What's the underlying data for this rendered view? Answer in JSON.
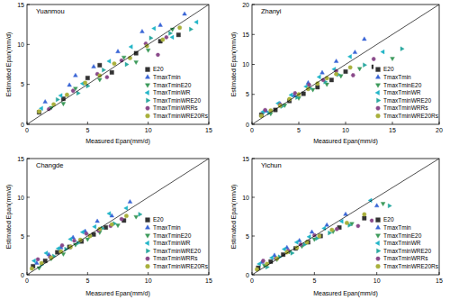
{
  "chart_data": [
    {
      "type": "scatter",
      "title": "Yuanmou",
      "x_label": "Measured Epan(mm/d)",
      "y_label": "Estimated Epan(mm/d)",
      "xlim": [
        0,
        15
      ],
      "ylim": [
        0,
        15
      ],
      "xticks": [
        0,
        5,
        10,
        15
      ],
      "yticks": [
        0,
        5,
        10,
        15
      ],
      "legend": "lower right",
      "series": [
        {
          "name": "E20",
          "color": "#333333",
          "marker": "square",
          "x": [
            1,
            3,
            5,
            7,
            9,
            11,
            12.5,
            6
          ],
          "values": [
            1.5,
            3.2,
            5.8,
            6.5,
            8.9,
            10.4,
            11.2,
            7.4
          ]
        },
        {
          "name": "TmaxTmin",
          "color": "#3a66d6",
          "marker": "triangle-up",
          "x": [
            1.5,
            3.5,
            5.5,
            7.5,
            9.5,
            11,
            13,
            4
          ],
          "values": [
            2.8,
            4.9,
            7.2,
            9.1,
            11.6,
            12.4,
            13.8,
            6.1
          ]
        },
        {
          "name": "TmaxTminE20",
          "color": "#3c9a5a",
          "marker": "triangle-down",
          "x": [
            2,
            4,
            6,
            8,
            10,
            12,
            3,
            9
          ],
          "values": [
            2.1,
            4.5,
            5.6,
            8.4,
            9.3,
            11.9,
            2.6,
            7.8
          ]
        },
        {
          "name": "TmaxTminWR",
          "color": "#22b5c8",
          "marker": "triangle-left",
          "x": [
            1.2,
            2.8,
            4.6,
            6.8,
            8.6,
            10.5,
            12,
            14
          ],
          "values": [
            2.0,
            3.6,
            5.1,
            7.9,
            9.7,
            12.0,
            10.9,
            12.8
          ]
        },
        {
          "name": "TmaxTminWRE20",
          "color": "#2aa8a0",
          "marker": "triangle-right",
          "x": [
            2.5,
            4.2,
            6.3,
            8.2,
            10.2,
            11.8,
            5,
            13.5
          ],
          "values": [
            3.1,
            3.9,
            6.8,
            7.5,
            10.8,
            11.4,
            4.8,
            11.9
          ]
        },
        {
          "name": "TmaxTminWRRs",
          "color": "#8a4a8a",
          "marker": "hexagon",
          "x": [
            1.8,
            3.8,
            5.8,
            7.8,
            9.8,
            11.5,
            6.6,
            10.8
          ],
          "values": [
            1.9,
            4.2,
            6.3,
            8.0,
            10.1,
            10.9,
            5.9,
            8.7
          ]
        },
        {
          "name": "TmaxTminWRE20Rs",
          "color": "#a9b03c",
          "marker": "circle",
          "x": [
            1,
            2.2,
            3.3,
            4.8,
            6,
            7.2,
            8.5,
            9.9,
            11.2,
            12.6
          ],
          "values": [
            1.6,
            2.5,
            3.7,
            5.2,
            6.1,
            7.6,
            8.3,
            9.8,
            10.6,
            12.1
          ]
        }
      ]
    },
    {
      "type": "scatter",
      "title": "Zhanyi",
      "x_label": "Measured Epan(mm/d)",
      "y_label": "Estimated Epan(mm/d)",
      "xlim": [
        0,
        20
      ],
      "ylim": [
        0,
        20
      ],
      "xticks": [
        0,
        5,
        10,
        15,
        20
      ],
      "yticks": [
        0,
        5,
        10,
        15,
        20
      ],
      "legend": "lower right",
      "series": [
        {
          "name": "E20",
          "color": "#333333",
          "marker": "square",
          "x": [
            1,
            2.5,
            4,
            5.5,
            7,
            8.5,
            10,
            13
          ],
          "values": [
            1.6,
            2.4,
            3.9,
            5.1,
            6.2,
            7.4,
            8.8,
            9.6
          ]
        },
        {
          "name": "TmaxTmin",
          "color": "#3a66d6",
          "marker": "triangle-up",
          "x": [
            1.5,
            3,
            4.5,
            6,
            7.5,
            9,
            11,
            12
          ],
          "values": [
            2.2,
            3.4,
            4.8,
            6.9,
            8.6,
            10.5,
            12.0,
            14.2
          ]
        },
        {
          "name": "TmaxTminE20",
          "color": "#3c9a5a",
          "marker": "triangle-down",
          "x": [
            2,
            3.5,
            5,
            6.5,
            8,
            9.5,
            11.5,
            15
          ],
          "values": [
            1.8,
            3.2,
            4.4,
            5.8,
            6.7,
            8.1,
            9.3,
            11.0
          ]
        },
        {
          "name": "TmaxTminWR",
          "color": "#22b5c8",
          "marker": "triangle-left",
          "x": [
            1.2,
            2.8,
            4.2,
            5.8,
            7.2,
            8.8,
            10.5,
            14
          ],
          "values": [
            2.1,
            3.5,
            4.9,
            6.3,
            7.9,
            9.2,
            11.3,
            12.1
          ]
        },
        {
          "name": "TmaxTminWRE20",
          "color": "#2aa8a0",
          "marker": "triangle-right",
          "x": [
            1.8,
            3.2,
            4.8,
            6.2,
            7.8,
            9.2,
            12,
            16
          ],
          "values": [
            1.9,
            3.0,
            4.5,
            6.0,
            7.1,
            8.3,
            9.9,
            12.6
          ]
        },
        {
          "name": "TmaxTminWRRs",
          "color": "#8a4a8a",
          "marker": "hexagon",
          "x": [
            1.4,
            3,
            4.6,
            6.1,
            7.6,
            9,
            10.8,
            13
          ],
          "values": [
            2.4,
            3.3,
            5.2,
            6.6,
            7.4,
            8.9,
            8.2,
            10.9
          ]
        },
        {
          "name": "TmaxTminWRE20Rs",
          "color": "#a9b03c",
          "marker": "circle",
          "x": [
            1,
            2,
            3,
            4,
            5,
            6,
            7,
            8,
            9,
            10.5
          ],
          "values": [
            1.4,
            2.3,
            3.1,
            4.2,
            5.0,
            5.9,
            6.8,
            7.7,
            8.4,
            9.5
          ]
        }
      ]
    },
    {
      "type": "scatter",
      "title": "Changde",
      "x_label": "Measured Epan(mm/d)",
      "y_label": "Estimated Epan(mm/d)",
      "xlim": [
        0,
        15
      ],
      "ylim": [
        0,
        15
      ],
      "xticks": [
        0,
        5,
        10,
        15
      ],
      "yticks": [
        0,
        5,
        10,
        15
      ],
      "legend": "lower right",
      "series": [
        {
          "name": "E20",
          "color": "#333333",
          "marker": "square",
          "x": [
            0.5,
            1.5,
            2.5,
            3.5,
            4.5,
            5.5,
            6.5,
            8
          ],
          "values": [
            1.1,
            1.8,
            2.9,
            3.6,
            4.3,
            5.2,
            6.1,
            7.0
          ]
        },
        {
          "name": "TmaxTmin",
          "color": "#3a66d6",
          "marker": "triangle-up",
          "x": [
            0.8,
            1.8,
            2.8,
            3.8,
            4.8,
            5.8,
            7,
            8.5
          ],
          "values": [
            1.5,
            2.6,
            3.5,
            4.8,
            5.6,
            6.9,
            7.6,
            9.4
          ]
        },
        {
          "name": "TmaxTminE20",
          "color": "#3c9a5a",
          "marker": "triangle-down",
          "x": [
            1,
            2,
            3,
            4,
            5,
            6,
            7.5,
            9
          ],
          "values": [
            0.9,
            2.1,
            2.7,
            3.9,
            4.6,
            5.5,
            6.4,
            7.5
          ]
        },
        {
          "name": "TmaxTminWR",
          "color": "#22b5c8",
          "marker": "triangle-left",
          "x": [
            0.6,
            1.6,
            2.6,
            3.6,
            4.6,
            5.6,
            6.8,
            8.2
          ],
          "values": [
            1.8,
            2.8,
            3.4,
            4.6,
            5.5,
            6.2,
            7.9,
            8.6
          ]
        },
        {
          "name": "TmaxTminWRE20",
          "color": "#2aa8a0",
          "marker": "triangle-right",
          "x": [
            1.2,
            2.2,
            3.2,
            4.2,
            5.2,
            6.2,
            7.2,
            9.3
          ],
          "values": [
            1.3,
            2.4,
            3.3,
            4.1,
            5.0,
            6.0,
            6.6,
            7.8
          ]
        },
        {
          "name": "TmaxTminWRRs",
          "color": "#8a4a8a",
          "marker": "hexagon",
          "x": [
            0.9,
            1.9,
            2.9,
            3.9,
            4.9,
            5.9,
            6.9,
            7.8
          ],
          "values": [
            2.0,
            2.3,
            3.8,
            4.4,
            5.3,
            5.7,
            6.3,
            7.2
          ]
        },
        {
          "name": "TmaxTminWRE20Rs",
          "color": "#a9b03c",
          "marker": "circle",
          "x": [
            0.4,
            1.2,
            2.0,
            2.8,
            3.6,
            4.4,
            5.2,
            6.0,
            7.0,
            8.2
          ],
          "values": [
            0.8,
            1.5,
            2.2,
            3.0,
            3.6,
            4.5,
            5.0,
            5.9,
            6.5,
            7.6
          ]
        }
      ]
    },
    {
      "type": "scatter",
      "title": "Yichun",
      "x_label": "Measured Epan(mm/d)",
      "y_label": "Estimated Epan(mm/d)",
      "xlim": [
        0,
        15
      ],
      "ylim": [
        0,
        15
      ],
      "xticks": [
        0,
        5,
        10,
        15
      ],
      "yticks": [
        0,
        5,
        10,
        15
      ],
      "legend": "lower right",
      "series": [
        {
          "name": "E20",
          "color": "#333333",
          "marker": "square",
          "x": [
            0.5,
            1.5,
            2.5,
            3.5,
            4.5,
            5.5,
            7,
            9
          ],
          "values": [
            0.9,
            1.7,
            2.6,
            3.4,
            4.2,
            5.0,
            6.1,
            7.3
          ]
        },
        {
          "name": "TmaxTmin",
          "color": "#3a66d6",
          "marker": "triangle-up",
          "x": [
            0.8,
            1.8,
            2.8,
            3.8,
            4.8,
            6,
            7.5,
            10
          ],
          "values": [
            1.6,
            2.5,
            3.5,
            4.4,
            5.5,
            6.4,
            7.8,
            8.9
          ]
        },
        {
          "name": "TmaxTminE20",
          "color": "#3c9a5a",
          "marker": "triangle-down",
          "x": [
            1,
            2,
            3,
            4,
            5,
            6.5,
            8,
            10.5
          ],
          "values": [
            1.2,
            2.0,
            3.0,
            3.7,
            4.6,
            5.6,
            6.6,
            9.2
          ]
        },
        {
          "name": "TmaxTminWR",
          "color": "#22b5c8",
          "marker": "triangle-left",
          "x": [
            0.6,
            1.6,
            2.6,
            3.6,
            4.6,
            5.8,
            7.2,
            9.5
          ],
          "values": [
            1.4,
            2.2,
            3.3,
            4.2,
            4.9,
            6.0,
            6.9,
            9.6
          ]
        },
        {
          "name": "TmaxTminWRE20",
          "color": "#2aa8a0",
          "marker": "triangle-right",
          "x": [
            1.2,
            2.2,
            3.2,
            4.2,
            5.2,
            6.2,
            7.8,
            11
          ],
          "values": [
            1.0,
            2.3,
            2.8,
            3.9,
            4.7,
            5.4,
            6.4,
            8.9
          ]
        },
        {
          "name": "TmaxTminWRRs",
          "color": "#8a4a8a",
          "marker": "hexagon",
          "x": [
            0.9,
            1.9,
            2.9,
            3.9,
            5,
            6.8,
            8.5,
            9.6
          ],
          "values": [
            1.8,
            2.1,
            3.1,
            3.9,
            5.1,
            5.9,
            6.3,
            7.0
          ]
        },
        {
          "name": "TmaxTminWRE20Rs",
          "color": "#a9b03c",
          "marker": "circle",
          "x": [
            0.4,
            1.2,
            2.0,
            2.8,
            3.6,
            4.4,
            5.4,
            6.4,
            7.6,
            9
          ],
          "values": [
            0.7,
            1.4,
            2.1,
            2.9,
            3.5,
            4.2,
            5.0,
            5.8,
            6.7,
            7.8
          ]
        }
      ]
    }
  ]
}
